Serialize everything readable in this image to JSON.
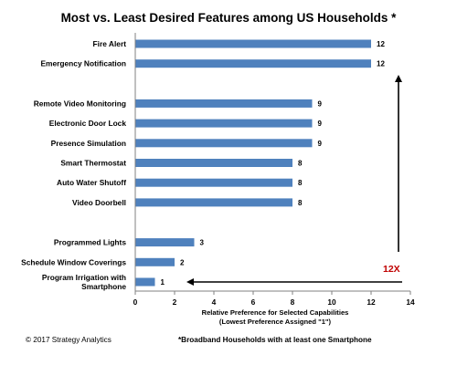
{
  "chart_data": {
    "type": "bar",
    "orientation": "horizontal",
    "title": "Most vs. Least Desired Features among US Households *",
    "xlabel_line1": "Relative Preference for Selected Capabilities",
    "xlabel_line2": "(Lowest Preference Assigned \"1\")",
    "xlim": [
      0,
      14
    ],
    "x_ticks": [
      "0",
      "2",
      "4",
      "6",
      "8",
      "10",
      "12",
      "14"
    ],
    "grid": false,
    "bar_color": "#4F81BD",
    "arrow_color": "#000000",
    "annotation_color": "#C00000",
    "groups": [
      {
        "categories": [
          {
            "label_lines": [
              "Fire Alert"
            ],
            "value": 12
          },
          {
            "label_lines": [
              "Emergency Notification"
            ],
            "value": 12
          }
        ]
      },
      {
        "categories": [
          {
            "label_lines": [
              "Remote Video Monitoring"
            ],
            "value": 9
          },
          {
            "label_lines": [
              "Electronic Door Lock"
            ],
            "value": 9
          },
          {
            "label_lines": [
              "Presence Simulation"
            ],
            "value": 9
          },
          {
            "label_lines": [
              "Smart Thermostat"
            ],
            "value": 8
          },
          {
            "label_lines": [
              "Auto Water Shutoff"
            ],
            "value": 8
          },
          {
            "label_lines": [
              "Video Doorbell"
            ],
            "value": 8
          }
        ]
      },
      {
        "categories": [
          {
            "label_lines": [
              "Programmed Lights"
            ],
            "value": 3
          },
          {
            "label_lines": [
              "Schedule Window Coverings"
            ],
            "value": 2
          },
          {
            "label_lines": [
              "Program Irrigation with",
              "Smartphone"
            ],
            "value": 1
          }
        ]
      }
    ],
    "annotation": "12X"
  },
  "footer": {
    "copyright": "© 2017 Strategy Analytics",
    "footnote": "*Broadband Households with at least one  Smartphone"
  }
}
